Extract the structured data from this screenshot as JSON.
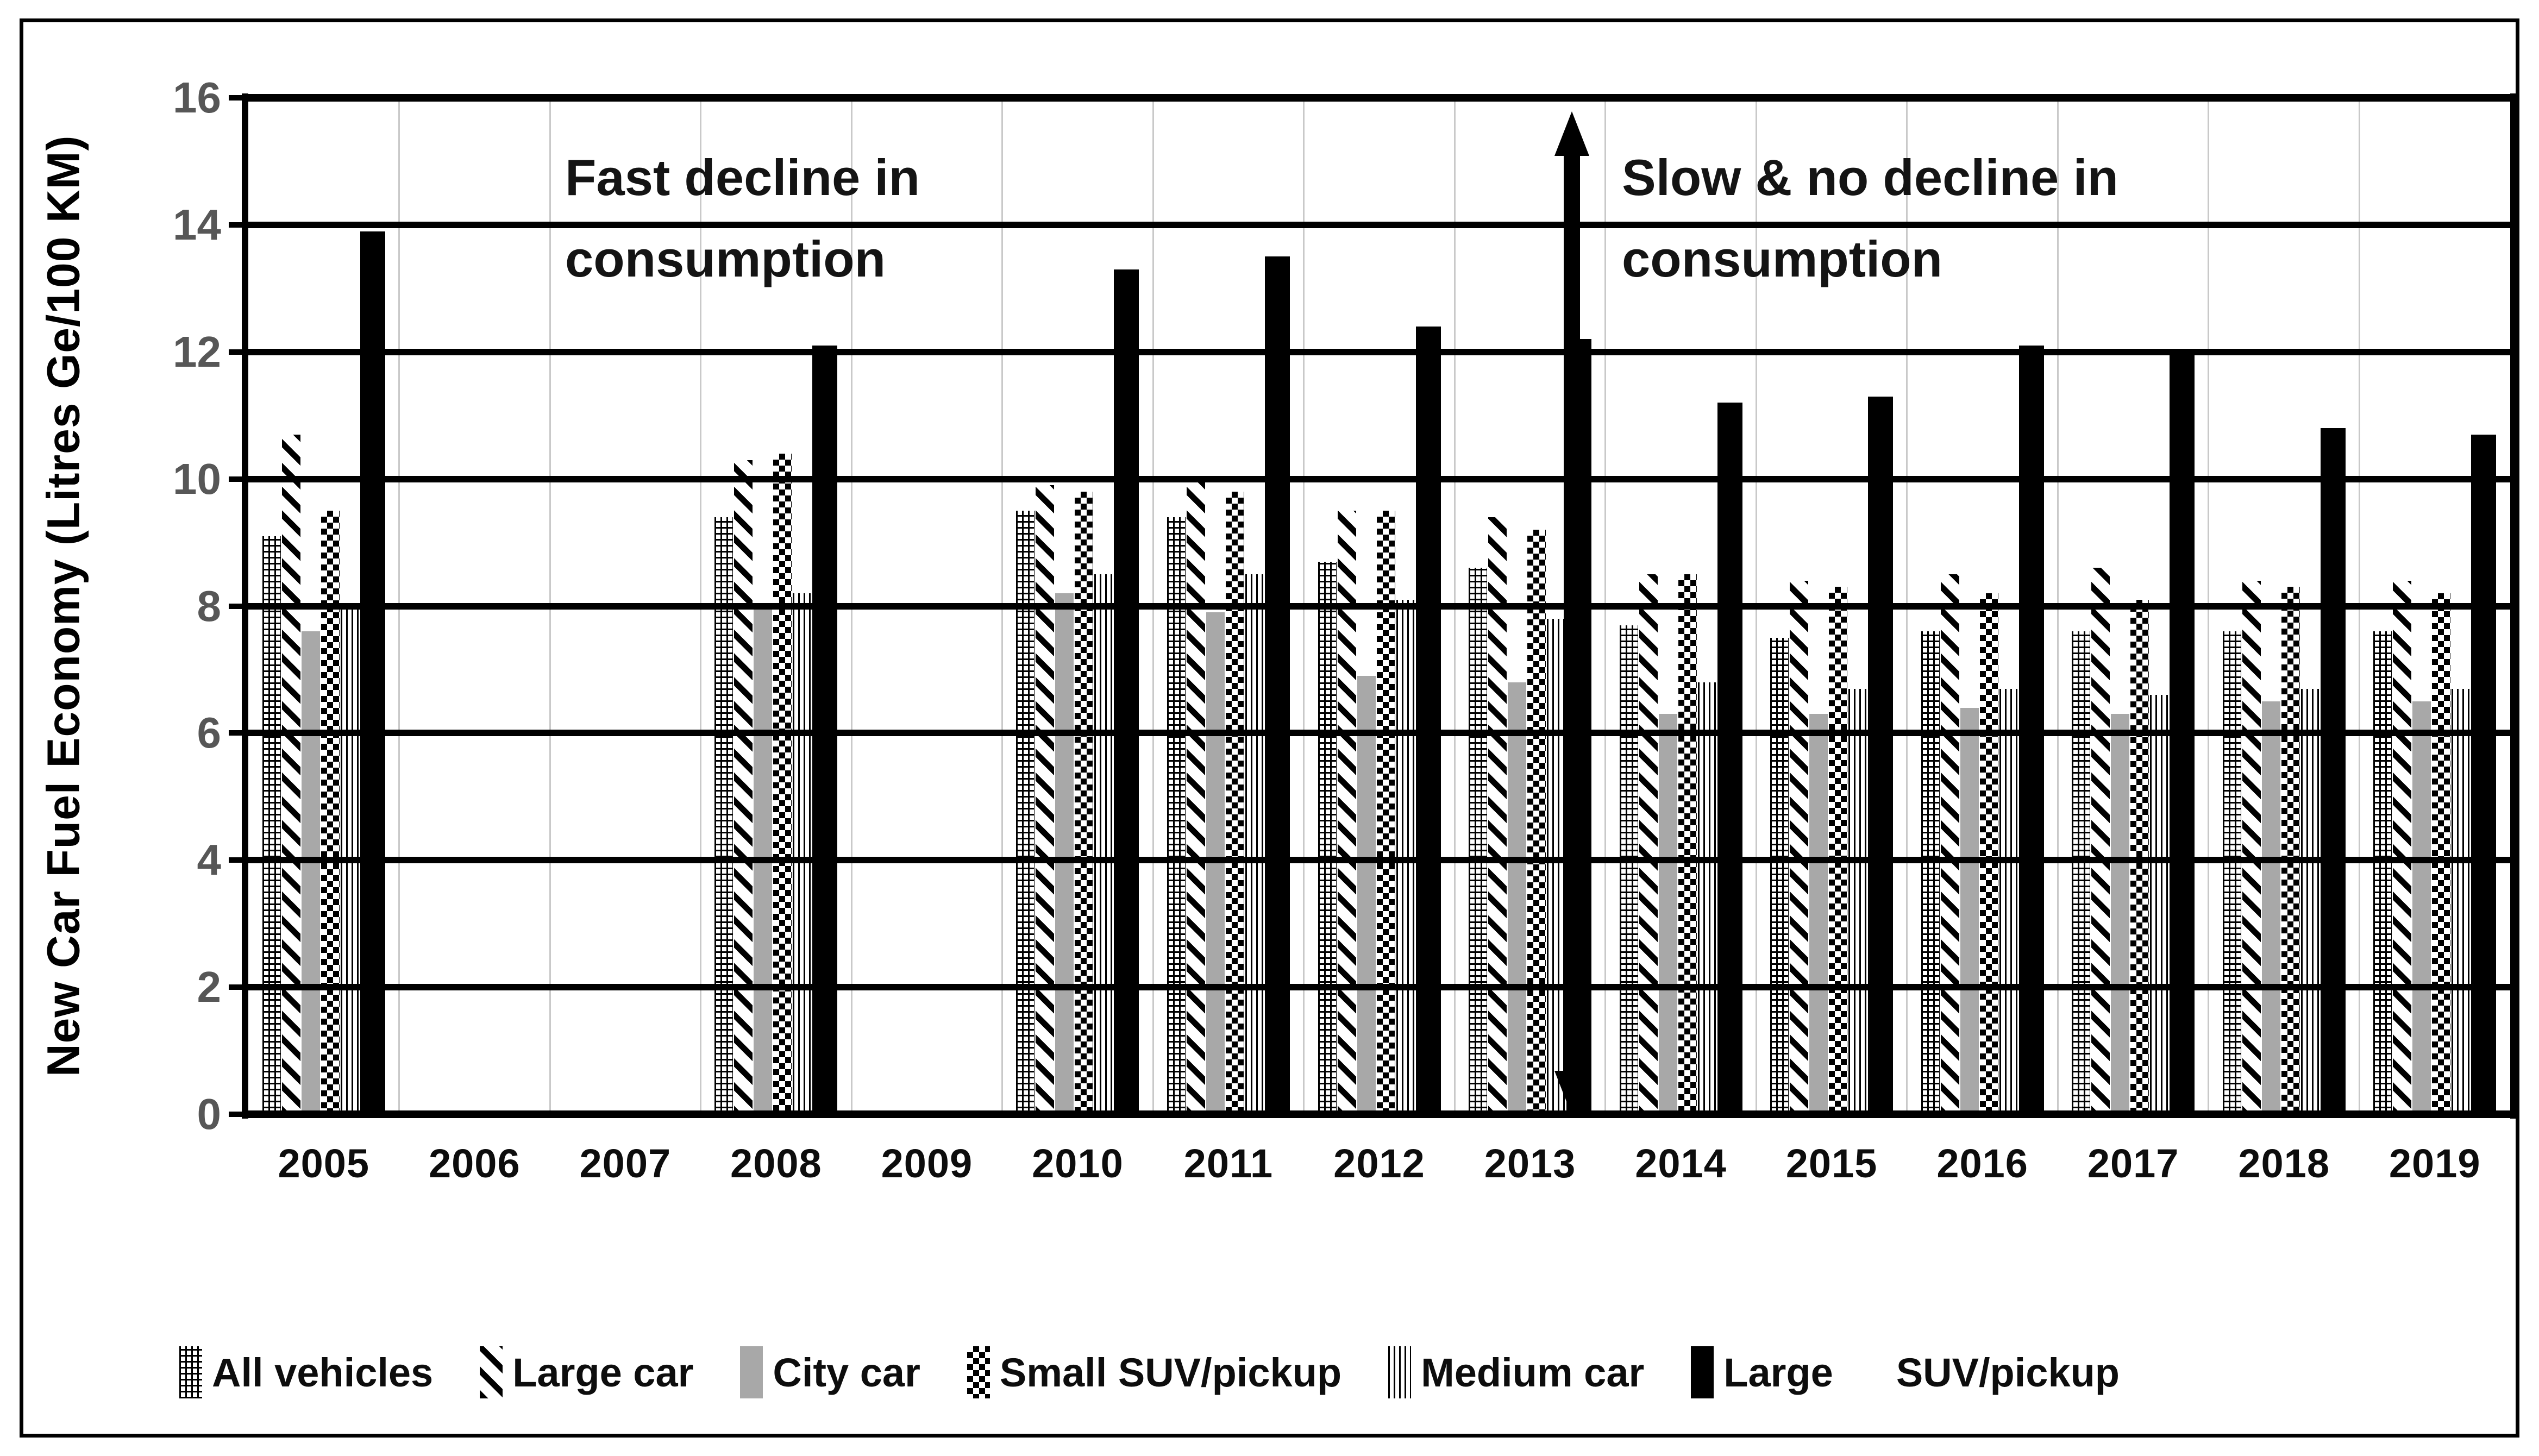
{
  "chart_data": {
    "type": "bar",
    "title": "",
    "xlabel": "",
    "ylabel": "New Car Fuel Economy (Litres Ge/100 KM)",
    "ylim": [
      0,
      16
    ],
    "ytick_step": 2,
    "yticks": [
      "0",
      "2",
      "4",
      "6",
      "8",
      "10",
      "12",
      "14",
      "16"
    ],
    "grid": "horizontal-major-on",
    "legend_position": "bottom",
    "categories": [
      "2005",
      "2006",
      "2007",
      "2008",
      "2009",
      "2010",
      "2011",
      "2012",
      "2013",
      "2014",
      "2015",
      "2016",
      "2017",
      "2018",
      "2019"
    ],
    "series": [
      {
        "name": "All vehicles",
        "pattern": "grid",
        "values": [
          9.1,
          null,
          null,
          9.4,
          null,
          9.5,
          9.4,
          8.7,
          8.6,
          7.7,
          7.5,
          7.6,
          7.6,
          7.6,
          7.6
        ]
      },
      {
        "name": "Large car",
        "pattern": "diagonal",
        "values": [
          10.7,
          null,
          null,
          10.3,
          null,
          9.9,
          10.0,
          9.5,
          9.4,
          8.5,
          8.4,
          8.5,
          8.6,
          8.4,
          8.4
        ]
      },
      {
        "name": "City car",
        "pattern": "solid-gray",
        "values": [
          7.6,
          null,
          null,
          8.0,
          null,
          8.2,
          7.9,
          6.9,
          6.8,
          6.3,
          6.3,
          6.4,
          6.3,
          6.5,
          6.5
        ]
      },
      {
        "name": "Small SUV/pickup",
        "pattern": "checker",
        "values": [
          9.5,
          null,
          null,
          10.4,
          null,
          9.8,
          9.8,
          9.5,
          9.2,
          8.5,
          8.3,
          8.2,
          8.1,
          8.3,
          8.2
        ]
      },
      {
        "name": "Medium car",
        "pattern": "vlines",
        "values": [
          8.0,
          null,
          null,
          8.2,
          null,
          8.5,
          8.5,
          8.1,
          7.8,
          6.8,
          6.7,
          6.7,
          6.6,
          6.7,
          6.7
        ]
      },
      {
        "name": "Large SUV/pickup",
        "pattern": "solid-black",
        "values": [
          13.9,
          null,
          null,
          12.1,
          null,
          13.3,
          13.5,
          12.4,
          12.2,
          11.2,
          11.3,
          12.1,
          12.0,
          10.8,
          10.7
        ]
      }
    ],
    "annotations": [
      {
        "id": "fast-decline",
        "line1": "Fast decline in",
        "line2": "consumption"
      },
      {
        "id": "slow-no-decline",
        "line1": "Slow & no decline in",
        "line2": "consumption"
      }
    ],
    "arrow": {
      "type": "double-headed-vertical",
      "location": "between 2013 and 2014",
      "span_values": [
        0,
        15.8
      ]
    }
  },
  "legend": {
    "entries": [
      {
        "swatch": "grid",
        "label": "All vehicles"
      },
      {
        "swatch": "diagonal",
        "label": "Large car"
      },
      {
        "swatch": "solid-gray",
        "label": "City car"
      },
      {
        "swatch": "checker",
        "label": "Small SUV/pickup"
      },
      {
        "swatch": "vlines",
        "label": "Medium car"
      },
      {
        "swatch": "solid-black",
        "label": "Large"
      },
      {
        "swatch": "none",
        "label": "SUV/pickup"
      }
    ]
  },
  "colors": {
    "background": "#ffffff",
    "bar_gray": "#a8a8a8",
    "bar_black": "#000000",
    "gridline": "#000000",
    "category_separator": "#c9c9c9",
    "y_tick_label": "#575757",
    "text": "#0d0d0d"
  }
}
